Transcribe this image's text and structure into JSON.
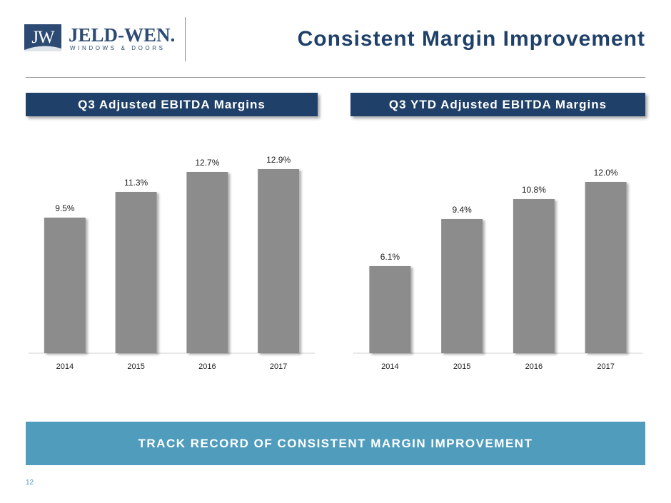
{
  "logo": {
    "mark": "JW",
    "name": "JELD-WEN.",
    "tagline": "WINDOWS & DOORS"
  },
  "title": "Consistent Margin Improvement",
  "panels": {
    "left": {
      "header": "Q3 Adjusted EBITDA Margins"
    },
    "right": {
      "header": "Q3 YTD Adjusted EBITDA Margins"
    }
  },
  "chart_data": [
    {
      "type": "bar",
      "title": "Q3 Adjusted EBITDA Margins",
      "categories": [
        "2014",
        "2015",
        "2016",
        "2017"
      ],
      "values": [
        9.5,
        11.3,
        12.7,
        12.9
      ],
      "value_labels": [
        "9.5%",
        "11.3%",
        "12.7%",
        "12.9%"
      ],
      "ylim": [
        0,
        13.5
      ],
      "grid": false,
      "bar_color": "#8c8c8c"
    },
    {
      "type": "bar",
      "title": "Q3 YTD Adjusted EBITDA Margins",
      "categories": [
        "2014",
        "2015",
        "2016",
        "2017"
      ],
      "values": [
        6.1,
        9.4,
        10.8,
        12.0
      ],
      "value_labels": [
        "6.1%",
        "9.4%",
        "10.8%",
        "12.0%"
      ],
      "ylim": [
        0,
        13.5
      ],
      "grid": false,
      "bar_color": "#8c8c8c"
    }
  ],
  "banner": {
    "text": "TRACK RECORD OF CONSISTENT MARGIN IMPROVEMENT"
  },
  "footer": {
    "page_number": "12"
  },
  "colors": {
    "navy": "#1f4068",
    "teal": "#4f9cbd",
    "bar": "#8c8c8c"
  }
}
